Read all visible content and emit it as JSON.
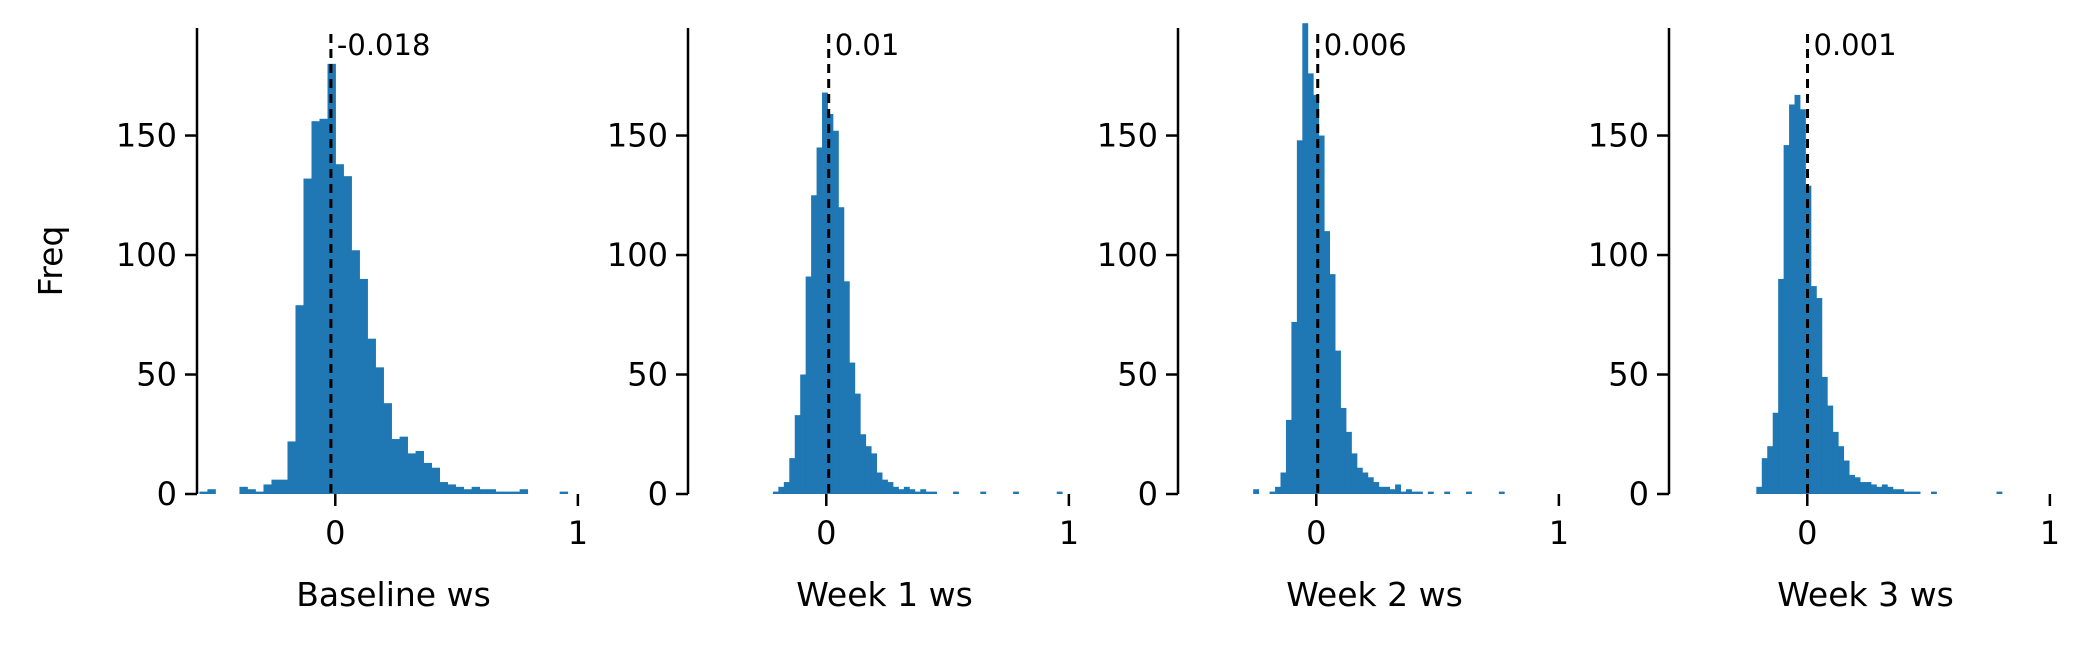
{
  "chart_data": [
    {
      "type": "bar",
      "xlabel": "Baseline ws",
      "ylabel": "Freq",
      "xlim": [
        -0.57,
        1.05
      ],
      "ylim": [
        0,
        195
      ],
      "xticks": [
        0,
        1
      ],
      "yticks": [
        0,
        50,
        100,
        150
      ],
      "mean": -0.018,
      "mean_label": "-0.018",
      "bin_start": -0.56,
      "bin_width": 0.033,
      "values": [
        1,
        2,
        0,
        0,
        0,
        3,
        2,
        1,
        4,
        6,
        6,
        22,
        79,
        132,
        156,
        157,
        180,
        138,
        133,
        102,
        90,
        65,
        53,
        38,
        23,
        24,
        17,
        18,
        13,
        11,
        5,
        4,
        3,
        2,
        3,
        2,
        2,
        1,
        1,
        1,
        2,
        0,
        0,
        0,
        0,
        1,
        0,
        0,
        0
      ]
    },
    {
      "type": "bar",
      "xlabel": "Week 1 ws",
      "ylabel": "",
      "xlim": [
        -0.57,
        1.05
      ],
      "ylim": [
        0,
        195
      ],
      "xticks": [
        0,
        1
      ],
      "yticks": [
        0,
        50,
        100,
        150
      ],
      "mean": 0.01,
      "mean_label": "0.01",
      "bin_start": -0.22,
      "bin_width": 0.0225,
      "values": [
        1,
        3,
        5,
        15,
        33,
        50,
        91,
        125,
        145,
        168,
        159,
        152,
        120,
        89,
        55,
        42,
        25,
        20,
        17,
        9,
        6,
        5,
        3,
        2,
        3,
        2,
        1,
        2,
        1,
        1,
        0,
        0,
        0,
        1,
        0,
        0,
        0,
        0,
        1,
        0,
        0,
        0,
        0,
        0,
        1,
        0,
        0,
        0,
        0,
        0,
        0,
        0,
        1
      ]
    },
    {
      "type": "bar",
      "xlabel": "Week 2 ws",
      "ylabel": "",
      "xlim": [
        -0.57,
        1.05
      ],
      "ylim": [
        0,
        195
      ],
      "xticks": [
        0,
        1
      ],
      "yticks": [
        0,
        50,
        100,
        150
      ],
      "mean": 0.006,
      "mean_label": "0.006",
      "bin_start": -0.26,
      "bin_width": 0.0225,
      "values": [
        2,
        0,
        0,
        1,
        3,
        9,
        31,
        72,
        148,
        197,
        176,
        167,
        150,
        110,
        92,
        60,
        36,
        26,
        17,
        11,
        9,
        7,
        5,
        3,
        3,
        2,
        4,
        1,
        2,
        1,
        1,
        0,
        1,
        0,
        0,
        1,
        0,
        0,
        0,
        1,
        0,
        0,
        0,
        0,
        0,
        1
      ]
    },
    {
      "type": "bar",
      "xlabel": "Week 3 ws",
      "ylabel": "",
      "xlim": [
        -0.57,
        1.05
      ],
      "ylim": [
        0,
        195
      ],
      "xticks": [
        0,
        1
      ],
      "yticks": [
        0,
        50,
        100,
        150
      ],
      "mean": 0.001,
      "mean_label": "0.001",
      "bin_start": -0.21,
      "bin_width": 0.0225,
      "values": [
        3,
        15,
        20,
        34,
        90,
        146,
        163,
        167,
        161,
        129,
        87,
        82,
        49,
        37,
        26,
        20,
        14,
        8,
        7,
        5,
        5,
        4,
        3,
        4,
        3,
        2,
        2,
        1,
        1,
        1,
        0,
        0,
        1,
        0,
        0,
        0,
        0,
        0,
        0,
        0,
        0,
        0,
        0,
        0,
        1
      ]
    }
  ]
}
